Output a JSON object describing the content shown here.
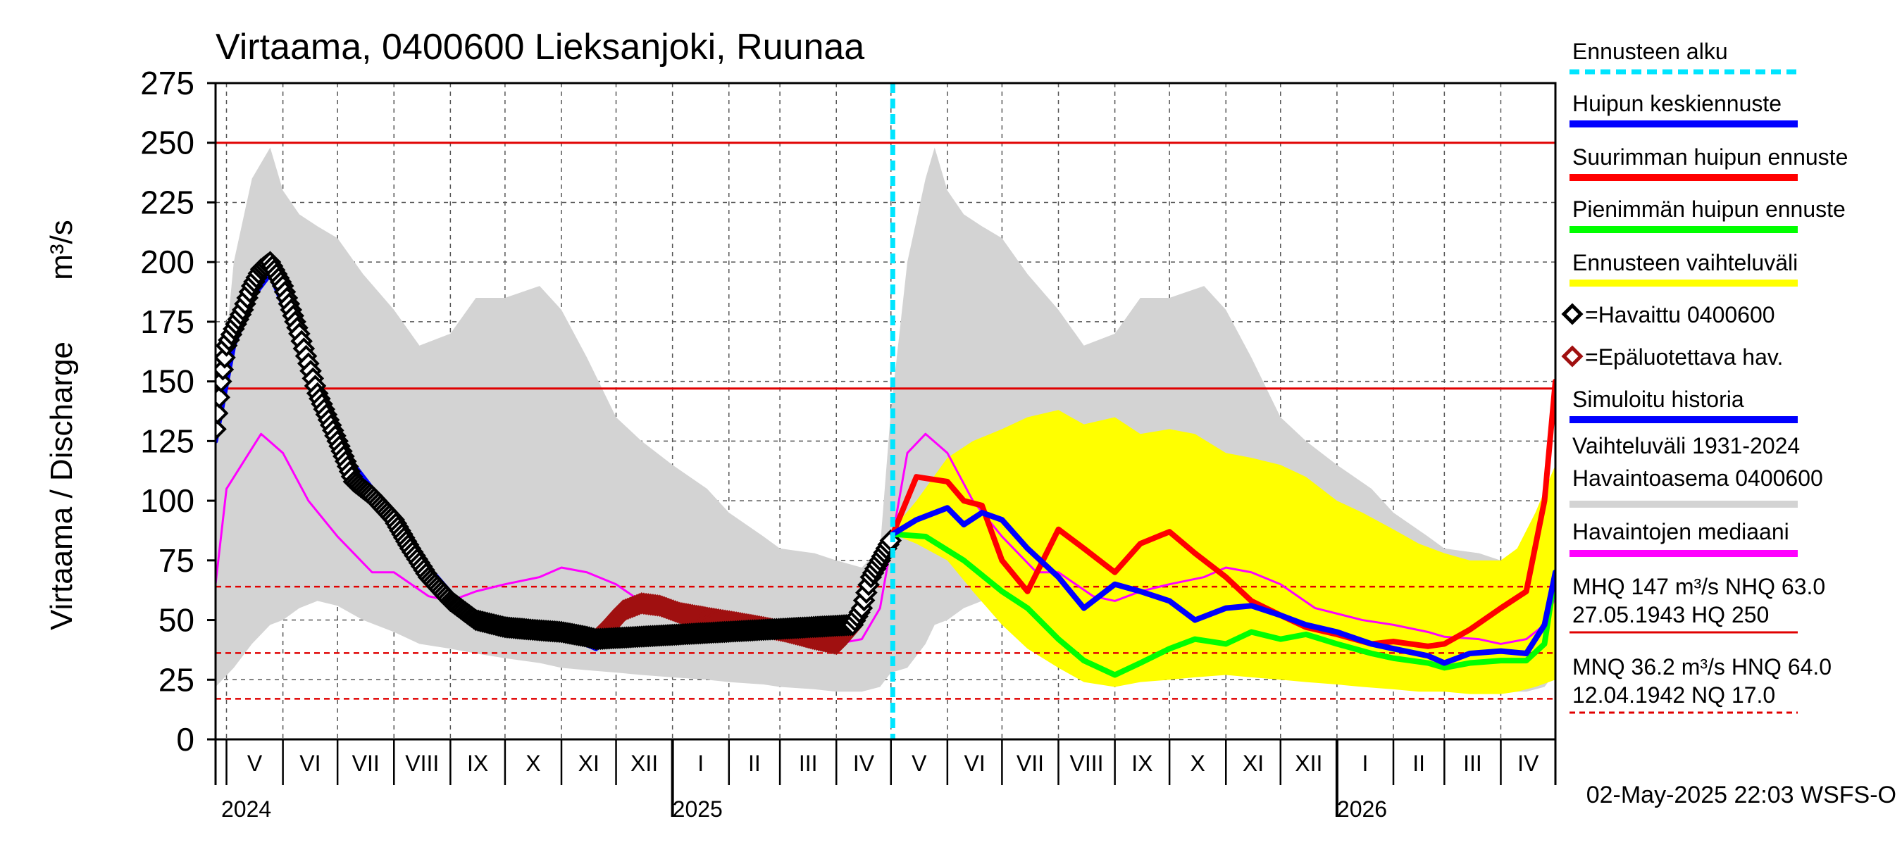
{
  "chart_data": {
    "type": "line",
    "title": "Virtaama, 0400600 Lieksanjoki, Ruunaa",
    "ylabel": "Virtaama / Discharge",
    "yunit": "m³/s",
    "ylim": [
      0,
      275
    ],
    "yticks": [
      0,
      25,
      50,
      75,
      100,
      125,
      150,
      175,
      200,
      225,
      250,
      275
    ],
    "xlim": [
      "2024-04-25",
      "2026-05-01"
    ],
    "forecast_start": "2025-05-02",
    "months": [
      {
        "label": "V",
        "start": "2024-05-01"
      },
      {
        "label": "VI",
        "start": "2024-06-01"
      },
      {
        "label": "VII",
        "start": "2024-07-01"
      },
      {
        "label": "VIII",
        "start": "2024-08-01"
      },
      {
        "label": "IX",
        "start": "2024-09-01"
      },
      {
        "label": "X",
        "start": "2024-10-01"
      },
      {
        "label": "XI",
        "start": "2024-11-01"
      },
      {
        "label": "XII",
        "start": "2024-12-01"
      },
      {
        "label": "I",
        "start": "2025-01-01"
      },
      {
        "label": "II",
        "start": "2025-02-01"
      },
      {
        "label": "III",
        "start": "2025-03-01"
      },
      {
        "label": "IV",
        "start": "2025-04-01"
      },
      {
        "label": "V",
        "start": "2025-05-01"
      },
      {
        "label": "VI",
        "start": "2025-06-01"
      },
      {
        "label": "VII",
        "start": "2025-07-01"
      },
      {
        "label": "VIII",
        "start": "2025-08-01"
      },
      {
        "label": "IX",
        "start": "2025-09-01"
      },
      {
        "label": "X",
        "start": "2025-10-01"
      },
      {
        "label": "XI",
        "start": "2025-11-01"
      },
      {
        "label": "XII",
        "start": "2025-12-01"
      },
      {
        "label": "I",
        "start": "2026-01-01"
      },
      {
        "label": "II",
        "start": "2026-02-01"
      },
      {
        "label": "III",
        "start": "2026-03-01"
      },
      {
        "label": "IV",
        "start": "2026-04-01"
      }
    ],
    "years": [
      {
        "label": "2024",
        "date": "2024-04-25"
      },
      {
        "label": "2025",
        "date": "2025-01-01"
      },
      {
        "label": "2026",
        "date": "2026-01-01"
      }
    ],
    "reference_lines": [
      {
        "name": "HQ",
        "value": 250,
        "style": "solid",
        "color": "#e00000"
      },
      {
        "name": "MHQ",
        "value": 147,
        "style": "solid",
        "color": "#e00000"
      },
      {
        "name": "HNQ",
        "value": 64,
        "style": "dashed",
        "color": "#e00000"
      },
      {
        "name": "MNQ",
        "value": 36.2,
        "style": "dashed",
        "color": "#e00000"
      },
      {
        "name": "NQ",
        "value": 17,
        "style": "dashed",
        "color": "#e00000"
      }
    ],
    "series": [
      {
        "name": "Vaihteluväli 1931-2024 Havaintoasema 0400600",
        "kind": "band",
        "color": "#d3d3d3",
        "x": [
          "2024-04-25",
          "2024-05-05",
          "2024-05-15",
          "2024-05-25",
          "2024-06-01",
          "2024-06-10",
          "2024-06-20",
          "2024-07-01",
          "2024-07-15",
          "2024-08-01",
          "2024-08-15",
          "2024-09-01",
          "2024-09-15",
          "2024-10-01",
          "2024-10-20",
          "2024-11-01",
          "2024-11-15",
          "2024-12-01",
          "2024-12-15",
          "2025-01-01",
          "2025-01-20",
          "2025-02-01",
          "2025-02-20",
          "2025-03-01",
          "2025-03-20",
          "2025-04-01",
          "2025-04-15",
          "2025-04-25",
          "2025-05-01",
          "2025-05-10",
          "2025-05-20",
          "2025-05-25",
          "2025-06-01",
          "2025-06-10",
          "2025-06-20",
          "2025-07-01",
          "2025-07-15",
          "2025-08-01",
          "2025-08-15",
          "2025-09-01",
          "2025-09-15",
          "2025-10-01",
          "2025-10-20",
          "2025-11-01",
          "2025-11-15",
          "2025-12-01",
          "2025-12-15",
          "2026-01-01",
          "2026-01-20",
          "2026-02-01",
          "2026-02-20",
          "2026-03-01",
          "2026-03-20",
          "2026-04-01",
          "2026-04-15",
          "2026-04-25",
          "2026-05-01"
        ],
        "upper": [
          120,
          200,
          235,
          248,
          230,
          220,
          215,
          210,
          195,
          180,
          165,
          170,
          185,
          185,
          190,
          180,
          160,
          135,
          125,
          115,
          105,
          95,
          85,
          80,
          78,
          75,
          72,
          80,
          138,
          200,
          235,
          248,
          230,
          220,
          215,
          210,
          195,
          180,
          165,
          170,
          185,
          185,
          190,
          180,
          160,
          135,
          125,
          115,
          105,
          95,
          85,
          80,
          78,
          75,
          72,
          80,
          100
        ],
        "lower": [
          22,
          30,
          40,
          48,
          50,
          55,
          58,
          56,
          50,
          45,
          40,
          38,
          36,
          34,
          32,
          30,
          29,
          28,
          27,
          26,
          25,
          24,
          23,
          22,
          21,
          20,
          20,
          22,
          28,
          30,
          40,
          48,
          50,
          55,
          58,
          56,
          50,
          45,
          40,
          38,
          36,
          34,
          32,
          30,
          29,
          28,
          27,
          26,
          25,
          24,
          23,
          22,
          21,
          20,
          20,
          22,
          28
        ]
      },
      {
        "name": "Ennusteen vaihteluväli",
        "kind": "band",
        "color": "#ffff00",
        "x": [
          "2025-05-02",
          "2025-05-15",
          "2025-06-01",
          "2025-06-15",
          "2025-07-01",
          "2025-07-15",
          "2025-08-01",
          "2025-08-15",
          "2025-09-01",
          "2025-09-15",
          "2025-10-01",
          "2025-10-15",
          "2025-11-01",
          "2025-11-15",
          "2025-12-01",
          "2025-12-15",
          "2026-01-01",
          "2026-01-15",
          "2026-02-01",
          "2026-02-15",
          "2026-03-01",
          "2026-03-15",
          "2026-04-01",
          "2026-04-10",
          "2026-04-20",
          "2026-05-01"
        ],
        "upper": [
          88,
          100,
          118,
          125,
          130,
          135,
          138,
          132,
          135,
          128,
          130,
          128,
          120,
          118,
          115,
          110,
          100,
          95,
          88,
          82,
          78,
          75,
          75,
          80,
          95,
          115
        ],
        "lower": [
          86,
          82,
          75,
          62,
          48,
          38,
          30,
          24,
          22,
          24,
          25,
          26,
          27,
          26,
          25,
          24,
          23,
          22,
          21,
          20,
          20,
          19,
          19,
          20,
          22,
          25
        ]
      },
      {
        "name": "Havaintojen mediaani",
        "kind": "line",
        "color": "#ff00ff",
        "x": [
          "2024-04-25",
          "2024-05-01",
          "2024-05-20",
          "2024-06-01",
          "2024-06-15",
          "2024-07-01",
          "2024-07-20",
          "2024-08-01",
          "2024-08-20",
          "2024-09-01",
          "2024-09-15",
          "2024-10-01",
          "2024-10-20",
          "2024-11-01",
          "2024-11-15",
          "2024-12-01",
          "2024-12-20",
          "2025-01-15",
          "2025-02-01",
          "2025-02-20",
          "2025-03-01",
          "2025-03-20",
          "2025-04-01",
          "2025-04-15",
          "2025-04-25",
          "2025-05-10",
          "2025-05-20",
          "2025-06-01",
          "2025-06-15",
          "2025-07-01",
          "2025-07-20",
          "2025-08-01",
          "2025-08-20",
          "2025-09-01",
          "2025-09-15",
          "2025-10-01",
          "2025-10-20",
          "2025-11-01",
          "2025-11-15",
          "2025-12-01",
          "2025-12-20",
          "2026-01-15",
          "2026-02-01",
          "2026-02-20",
          "2026-03-01",
          "2026-03-20",
          "2026-04-01",
          "2026-04-15",
          "2026-04-25",
          "2026-05-01"
        ],
        "y": [
          65,
          105,
          128,
          120,
          100,
          85,
          70,
          70,
          60,
          58,
          62,
          65,
          68,
          72,
          70,
          65,
          55,
          50,
          48,
          45,
          43,
          42,
          40,
          42,
          55,
          120,
          128,
          120,
          100,
          85,
          70,
          70,
          60,
          58,
          62,
          65,
          68,
          72,
          70,
          65,
          55,
          50,
          48,
          45,
          43,
          42,
          40,
          42,
          48,
          60
        ]
      },
      {
        "name": "Havaittu 0400600",
        "kind": "markers",
        "color": "#000000",
        "marker": "diamond",
        "x": [
          "2024-04-25",
          "2024-04-28",
          "2024-05-01",
          "2024-05-05",
          "2024-05-10",
          "2024-05-15",
          "2024-05-20",
          "2024-05-25",
          "2024-06-01",
          "2024-06-10",
          "2024-06-20",
          "2024-07-01",
          "2024-07-10",
          "2024-07-20",
          "2024-08-01",
          "2024-08-10",
          "2024-08-20",
          "2024-09-01",
          "2024-09-15",
          "2024-10-01",
          "2024-10-15",
          "2024-11-01",
          "2024-11-15",
          "2024-11-20",
          "2025-04-10",
          "2025-04-15",
          "2025-04-20",
          "2025-04-25",
          "2025-05-02"
        ],
        "y": [
          130,
          150,
          165,
          172,
          180,
          190,
          197,
          200,
          190,
          170,
          145,
          125,
          108,
          102,
          92,
          80,
          68,
          58,
          50,
          47,
          46,
          45,
          43,
          42,
          48,
          55,
          68,
          75,
          85
        ]
      },
      {
        "name": "Epäluotettava hav.",
        "kind": "markers",
        "color": "#a01010",
        "marker": "diamond",
        "x": [
          "2024-11-20",
          "2024-11-28",
          "2024-12-05",
          "2024-12-15",
          "2024-12-25",
          "2025-01-05",
          "2025-01-20",
          "2025-02-05",
          "2025-02-20",
          "2025-03-05",
          "2025-03-20",
          "2025-04-01",
          "2025-04-10"
        ],
        "y": [
          42,
          48,
          54,
          57,
          56,
          53,
          51,
          49,
          47,
          45,
          42,
          40,
          48
        ]
      },
      {
        "name": "Simuloitu historia",
        "kind": "line",
        "color": "#0000ff",
        "x": [
          "2024-04-25",
          "2024-05-05",
          "2024-05-15",
          "2024-05-25",
          "2024-06-05",
          "2024-06-20",
          "2024-07-05",
          "2024-07-20",
          "2024-08-05",
          "2024-08-20",
          "2024-09-05",
          "2024-09-20",
          "2024-10-05",
          "2024-10-20",
          "2024-11-05",
          "2024-11-20",
          "2024-12-05",
          "2024-12-20",
          "2025-01-05",
          "2025-01-20",
          "2025-02-05",
          "2025-02-20",
          "2025-03-05",
          "2025-03-20",
          "2025-04-01",
          "2025-04-15",
          "2025-04-25",
          "2025-05-02"
        ],
        "y": [
          125,
          165,
          185,
          195,
          175,
          145,
          120,
          105,
          90,
          72,
          58,
          50,
          47,
          45,
          43,
          38,
          55,
          55,
          52,
          50,
          48,
          46,
          43,
          39,
          38,
          55,
          72,
          86
        ]
      },
      {
        "name": "Huipun keskiennuste",
        "kind": "line",
        "color": "#0000ff",
        "x": [
          "2025-05-02",
          "2025-05-15",
          "2025-06-01",
          "2025-06-10",
          "2025-06-20",
          "2025-07-01",
          "2025-07-15",
          "2025-08-01",
          "2025-08-15",
          "2025-09-01",
          "2025-09-15",
          "2025-10-01",
          "2025-10-15",
          "2025-11-01",
          "2025-11-15",
          "2025-12-01",
          "2025-12-15",
          "2026-01-01",
          "2026-01-20",
          "2026-02-01",
          "2026-02-20",
          "2026-03-01",
          "2026-03-15",
          "2026-04-01",
          "2026-04-15",
          "2026-04-25",
          "2026-05-01"
        ],
        "y": [
          86,
          92,
          97,
          90,
          95,
          92,
          80,
          68,
          55,
          65,
          62,
          58,
          50,
          55,
          56,
          52,
          48,
          45,
          40,
          38,
          35,
          32,
          36,
          37,
          36,
          48,
          70
        ]
      },
      {
        "name": "Suurimman huipun ennuste",
        "kind": "line",
        "color": "#ff0000",
        "x": [
          "2025-05-02",
          "2025-05-15",
          "2025-06-01",
          "2025-06-10",
          "2025-06-20",
          "2025-07-01",
          "2025-07-15",
          "2025-08-01",
          "2025-08-15",
          "2025-09-01",
          "2025-09-15",
          "2025-10-01",
          "2025-10-15",
          "2025-11-01",
          "2025-11-15",
          "2025-12-01",
          "2025-12-15",
          "2026-01-01",
          "2026-01-20",
          "2026-02-01",
          "2026-02-20",
          "2026-03-01",
          "2026-03-15",
          "2026-04-01",
          "2026-04-15",
          "2026-04-25",
          "2026-05-01"
        ],
        "y": [
          86,
          110,
          108,
          100,
          98,
          75,
          62,
          88,
          80,
          70,
          82,
          87,
          78,
          68,
          58,
          52,
          47,
          44,
          40,
          41,
          39,
          40,
          46,
          55,
          62,
          100,
          150
        ]
      },
      {
        "name": "Pienimmän huipun ennuste",
        "kind": "line",
        "color": "#00ff00",
        "x": [
          "2025-05-02",
          "2025-05-20",
          "2025-06-10",
          "2025-07-01",
          "2025-07-15",
          "2025-08-01",
          "2025-08-15",
          "2025-09-01",
          "2025-09-15",
          "2025-10-01",
          "2025-10-15",
          "2025-11-01",
          "2025-11-15",
          "2025-12-01",
          "2025-12-15",
          "2026-01-01",
          "2026-01-20",
          "2026-02-01",
          "2026-02-20",
          "2026-03-01",
          "2026-03-15",
          "2026-04-01",
          "2026-04-15",
          "2026-04-25",
          "2026-05-01"
        ],
        "y": [
          86,
          85,
          75,
          62,
          55,
          42,
          33,
          27,
          32,
          38,
          42,
          40,
          45,
          42,
          44,
          40,
          36,
          34,
          32,
          30,
          32,
          33,
          33,
          40,
          70
        ]
      }
    ],
    "legend": [
      {
        "label": "Ennusteen alku",
        "symbol": "dashed-line",
        "color": "#00e5ff"
      },
      {
        "label": "Huipun keskiennuste",
        "symbol": "line",
        "color": "#0000ff"
      },
      {
        "label": "Suurimman huipun ennuste",
        "symbol": "line",
        "color": "#ff0000"
      },
      {
        "label": "Pienimmän huipun ennuste",
        "symbol": "line",
        "color": "#00ff00"
      },
      {
        "label": "Ennusteen vaihteluväli",
        "symbol": "line",
        "color": "#ffff00"
      },
      {
        "label": "=Havaittu 0400600",
        "symbol": "diamond",
        "color": "#000000"
      },
      {
        "label": "=Epäluotettava hav.",
        "symbol": "diamond",
        "color": "#a01010"
      },
      {
        "label": "Simuloitu historia",
        "symbol": "line",
        "color": "#0000ff"
      },
      {
        "label": "Vaihteluväli 1931-2024",
        "label2": " Havaintoasema 0400600",
        "symbol": "line",
        "color": "#d3d3d3"
      },
      {
        "label": "Havaintojen mediaani",
        "symbol": "line",
        "color": "#ff00ff"
      },
      {
        "label": "MHQ  147 m³/s NHQ 63.0",
        "label2": "27.05.1943 HQ  250",
        "symbol": "line",
        "color": "#e00000"
      },
      {
        "label": "MNQ 36.2 m³/s HNQ 64.0",
        "label2": "12.04.1942 NQ 17.0",
        "symbol": "dashed-line",
        "color": "#e00000"
      }
    ],
    "footer": "02-May-2025 22:03 WSFS-O"
  }
}
